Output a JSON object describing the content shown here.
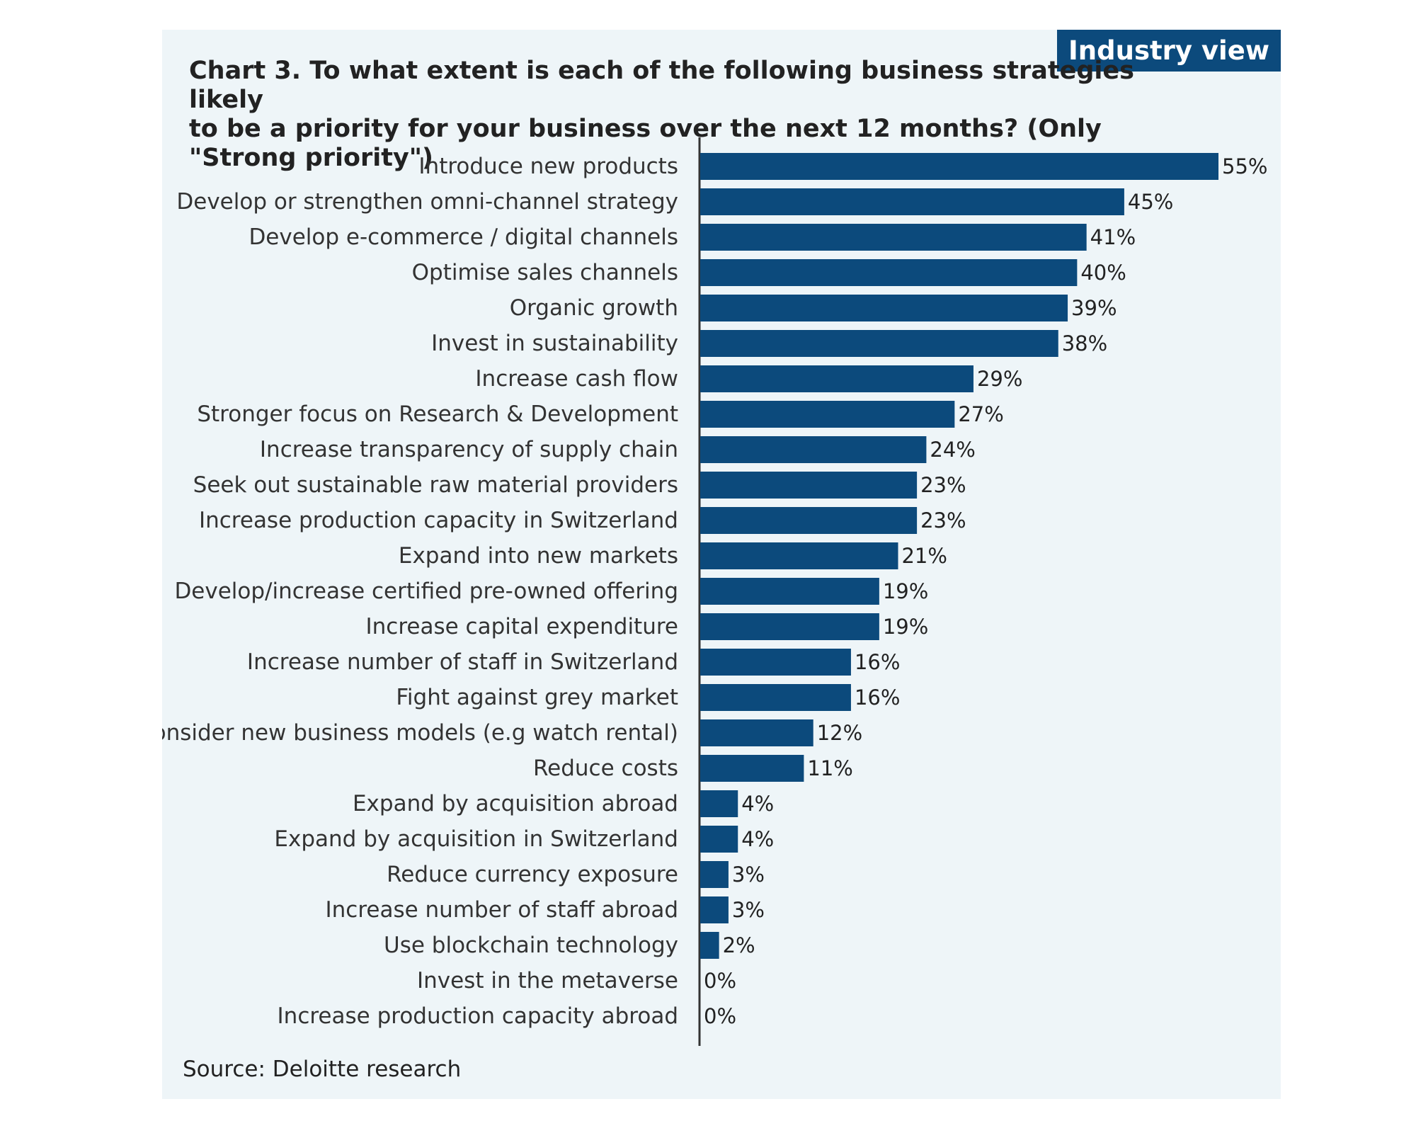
{
  "badge": "Industry view",
  "title_lines": [
    "Chart 3. To what extent is each of the following business strategies likely",
    "to be a priority for your business over the next 12 months? (Only \"Strong priority\")"
  ],
  "source": "Source: Deloitte research",
  "colors": {
    "bar": "#0c4a7c",
    "panel": "#eef5f8",
    "badge": "#0c4a7c"
  },
  "chart_data": {
    "type": "bar",
    "orientation": "horizontal",
    "title": "Chart 3. To what extent is each of the following business strategies likely to be a priority for your business over the next 12 months? (Only \"Strong priority\")",
    "unit": "%",
    "xlim": [
      0,
      55
    ],
    "grid": false,
    "categories": [
      "Introduce new products",
      "Develop or strengthen omni-channel strategy",
      "Develop e-commerce / digital channels",
      "Optimise sales channels",
      "Organic growth",
      "Invest in sustainability",
      "Increase cash flow",
      "Stronger focus on Research & Development",
      "Increase transparency of supply chain",
      "Seek out sustainable raw material providers",
      "Increase production capacity in Switzerland",
      "Expand into new markets",
      "Develop/increase certified pre-owned offering",
      "Increase capital expenditure",
      "Increase number of staff in Switzerland",
      "Fight against grey market",
      "Consider new business models (e.g watch rental)",
      "Reduce costs",
      "Expand by acquisition abroad",
      "Expand by acquisition in Switzerland",
      "Reduce currency exposure",
      "Increase number of staff abroad",
      "Use blockchain technology",
      "Invest in the metaverse",
      "Increase production capacity abroad"
    ],
    "values": [
      55,
      45,
      41,
      40,
      39,
      38,
      29,
      27,
      24,
      23,
      23,
      21,
      19,
      19,
      16,
      16,
      12,
      11,
      4,
      4,
      3,
      3,
      2,
      0,
      0
    ],
    "value_labels": [
      "55%",
      "45%",
      "41%",
      "40%",
      "39%",
      "38%",
      "29%",
      "27%",
      "24%",
      "23%",
      "23%",
      "21%",
      "19%",
      "19%",
      "16%",
      "16%",
      "12%",
      "11%",
      "4%",
      "4%",
      "3%",
      "3%",
      "2%",
      "0%",
      "0%"
    ]
  }
}
